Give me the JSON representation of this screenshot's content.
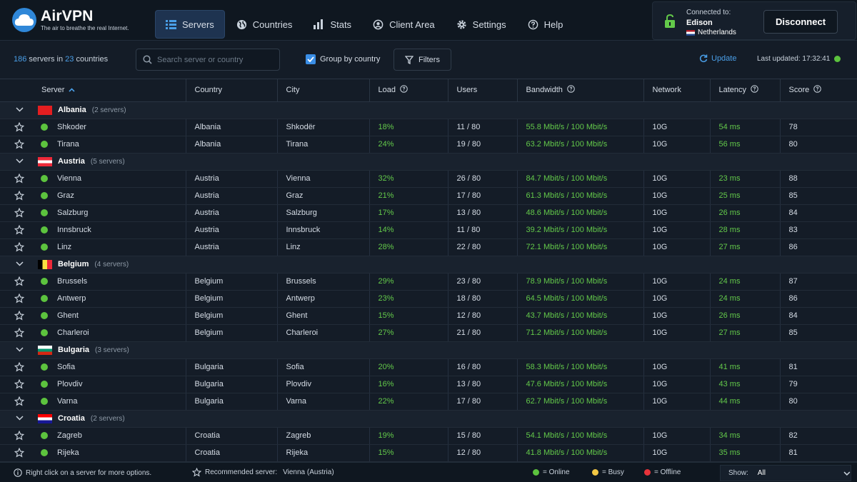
{
  "app": {
    "title": "AirVPN",
    "tagline": "The air to breathe the real Internet."
  },
  "nav": [
    {
      "label": "Servers",
      "icon": "list-icon",
      "active": true
    },
    {
      "label": "Countries",
      "icon": "globe-icon"
    },
    {
      "label": "Stats",
      "icon": "bar-chart-icon"
    },
    {
      "label": "Client Area",
      "icon": "user-icon"
    },
    {
      "label": "Settings",
      "icon": "gear-icon"
    },
    {
      "label": "Help",
      "icon": "help-icon"
    }
  ],
  "connection": {
    "label": "Connected to:",
    "server": "Edison",
    "country": "Netherlands",
    "disconnect_label": "Disconnect"
  },
  "toolbar": {
    "server_count": "186",
    "servers_in": "servers in",
    "country_count": "23",
    "countries_label": "countries",
    "search_placeholder": "Search server or country",
    "group_label": "Group by country",
    "group_checked": true,
    "filters_label": "Filters",
    "update_label": "Update",
    "last_updated": "Last updated: 17:32:41"
  },
  "columns": [
    "Server",
    "Country",
    "City",
    "Load",
    "Users",
    "Bandwidth",
    "Network",
    "Latency",
    "Score"
  ],
  "groups": [
    {
      "country": "Albania",
      "count_label": "(2 servers)",
      "flag": [
        "#e41e20"
      ],
      "servers": [
        {
          "name": "Shkoder",
          "country": "Albania",
          "city": "Shkodër",
          "load": "18%",
          "users": "11 / 80",
          "bandwidth": "55.8 Mbit/s / 100 Mbit/s",
          "network": "10G",
          "latency": "54 ms",
          "score": "78"
        },
        {
          "name": "Tirana",
          "country": "Albania",
          "city": "Tirana",
          "load": "24%",
          "users": "19 / 80",
          "bandwidth": "63.2 Mbit/s / 100 Mbit/s",
          "network": "10G",
          "latency": "56 ms",
          "score": "80"
        }
      ]
    },
    {
      "country": "Austria",
      "count_label": "(5 servers)",
      "flag": [
        "#ed2939",
        "#ffffff",
        "#ed2939"
      ],
      "servers": [
        {
          "name": "Vienna",
          "country": "Austria",
          "city": "Vienna",
          "load": "32%",
          "users": "26 / 80",
          "bandwidth": "84.7 Mbit/s / 100 Mbit/s",
          "network": "10G",
          "latency": "23 ms",
          "score": "88"
        },
        {
          "name": "Graz",
          "country": "Austria",
          "city": "Graz",
          "load": "21%",
          "users": "17 / 80",
          "bandwidth": "61.3 Mbit/s / 100 Mbit/s",
          "network": "10G",
          "latency": "25 ms",
          "score": "85"
        },
        {
          "name": "Salzburg",
          "country": "Austria",
          "city": "Salzburg",
          "load": "17%",
          "users": "13 / 80",
          "bandwidth": "48.6 Mbit/s / 100 Mbit/s",
          "network": "10G",
          "latency": "26 ms",
          "score": "84"
        },
        {
          "name": "Innsbruck",
          "country": "Austria",
          "city": "Innsbruck",
          "load": "14%",
          "users": "11 / 80",
          "bandwidth": "39.2 Mbit/s / 100 Mbit/s",
          "network": "10G",
          "latency": "28 ms",
          "score": "83"
        },
        {
          "name": "Linz",
          "country": "Austria",
          "city": "Linz",
          "load": "28%",
          "users": "22 / 80",
          "bandwidth": "72.1 Mbit/s / 100 Mbit/s",
          "network": "10G",
          "latency": "27 ms",
          "score": "86"
        }
      ]
    },
    {
      "country": "Belgium",
      "count_label": "(4 servers)",
      "flag_v": [
        "#000000",
        "#fae042",
        "#ed2939"
      ],
      "servers": [
        {
          "name": "Brussels",
          "country": "Belgium",
          "city": "Brussels",
          "load": "29%",
          "users": "23 / 80",
          "bandwidth": "78.9 Mbit/s / 100 Mbit/s",
          "network": "10G",
          "latency": "24 ms",
          "score": "87"
        },
        {
          "name": "Antwerp",
          "country": "Belgium",
          "city": "Antwerp",
          "load": "23%",
          "users": "18 / 80",
          "bandwidth": "64.5 Mbit/s / 100 Mbit/s",
          "network": "10G",
          "latency": "24 ms",
          "score": "86"
        },
        {
          "name": "Ghent",
          "country": "Belgium",
          "city": "Ghent",
          "load": "15%",
          "users": "12 / 80",
          "bandwidth": "43.7 Mbit/s / 100 Mbit/s",
          "network": "10G",
          "latency": "26 ms",
          "score": "84"
        },
        {
          "name": "Charleroi",
          "country": "Belgium",
          "city": "Charleroi",
          "load": "27%",
          "users": "21 / 80",
          "bandwidth": "71.2 Mbit/s / 100 Mbit/s",
          "network": "10G",
          "latency": "27 ms",
          "score": "85"
        }
      ]
    },
    {
      "country": "Bulgaria",
      "count_label": "(3 servers)",
      "flag": [
        "#ffffff",
        "#00966e",
        "#d62612"
      ],
      "servers": [
        {
          "name": "Sofia",
          "country": "Bulgaria",
          "city": "Sofia",
          "load": "20%",
          "users": "16 / 80",
          "bandwidth": "58.3 Mbit/s / 100 Mbit/s",
          "network": "10G",
          "latency": "41 ms",
          "score": "81"
        },
        {
          "name": "Plovdiv",
          "country": "Bulgaria",
          "city": "Plovdiv",
          "load": "16%",
          "users": "13 / 80",
          "bandwidth": "47.6 Mbit/s / 100 Mbit/s",
          "network": "10G",
          "latency": "43 ms",
          "score": "79"
        },
        {
          "name": "Varna",
          "country": "Bulgaria",
          "city": "Varna",
          "load": "22%",
          "users": "17 / 80",
          "bandwidth": "62.7 Mbit/s / 100 Mbit/s",
          "network": "10G",
          "latency": "44 ms",
          "score": "80"
        }
      ]
    },
    {
      "country": "Croatia",
      "count_label": "(2 servers)",
      "flag": [
        "#ff0000",
        "#ffffff",
        "#171796"
      ],
      "servers": [
        {
          "name": "Zagreb",
          "country": "Croatia",
          "city": "Zagreb",
          "load": "19%",
          "users": "15 / 80",
          "bandwidth": "54.1 Mbit/s / 100 Mbit/s",
          "network": "10G",
          "latency": "34 ms",
          "score": "82"
        },
        {
          "name": "Rijeka",
          "country": "Croatia",
          "city": "Rijeka",
          "load": "15%",
          "users": "12 / 80",
          "bandwidth": "41.8 Mbit/s / 100 Mbit/s",
          "network": "10G",
          "latency": "35 ms",
          "score": "81"
        }
      ]
    }
  ],
  "footer": {
    "hint": "Right click on a server for more options.",
    "recommended_label": "Recommended server:",
    "recommended_value": "Vienna (Austria)",
    "legend": [
      {
        "label": "= Online",
        "color": "#5cc33e"
      },
      {
        "label": "= Busy",
        "color": "#f2c744"
      },
      {
        "label": "= Offline",
        "color": "#e8333a"
      }
    ],
    "show_label": "Show:",
    "show_value": "All"
  },
  "colors": {
    "accent": "#3a8ee6",
    "online": "#5cc33e",
    "good_value": "#63c94a"
  }
}
